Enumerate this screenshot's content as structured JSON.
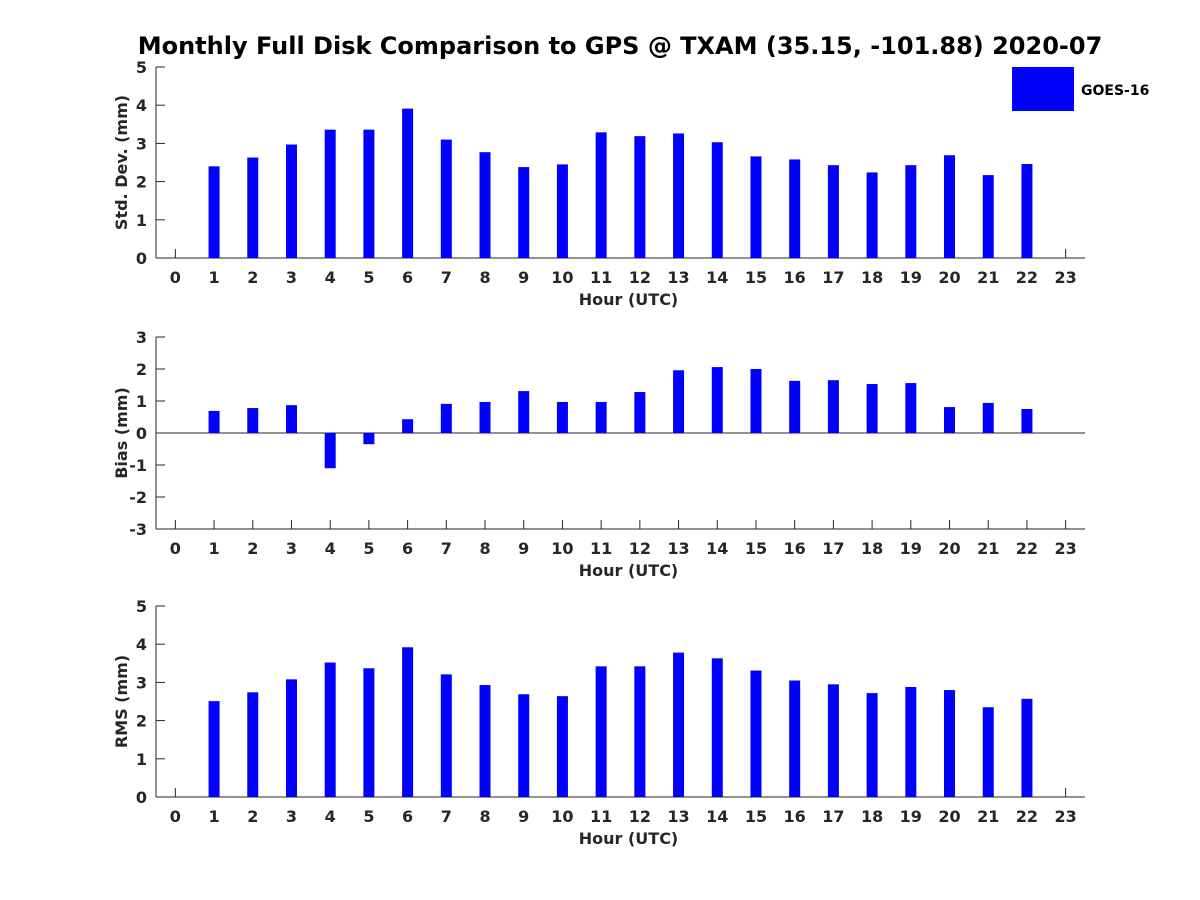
{
  "title": "Monthly Full Disk Comparison to GPS @ TXAM (35.15, -101.88) 2020-07",
  "colors": {
    "bar": "#0000ff",
    "axis": "#262626",
    "background": "#ffffff"
  },
  "legend": {
    "label": "GOES-16",
    "position": "top-right"
  },
  "chart_data": [
    {
      "type": "bar",
      "name": "std-dev",
      "title": "Monthly Full Disk Comparison to GPS @ TXAM (35.15, -101.88) 2020-07",
      "xlabel": "Hour (UTC)",
      "ylabel": "Std. Dev. (mm)",
      "xlim": [
        -0.5,
        23.5
      ],
      "ylim": [
        0,
        5
      ],
      "yticks": [
        0,
        1,
        2,
        3,
        4,
        5
      ],
      "xticks": [
        0,
        1,
        2,
        3,
        4,
        5,
        6,
        7,
        8,
        9,
        10,
        11,
        12,
        13,
        14,
        15,
        16,
        17,
        18,
        19,
        20,
        21,
        22,
        23
      ],
      "zero_line": false,
      "series": [
        {
          "name": "GOES-16",
          "x": [
            1,
            2,
            3,
            4,
            5,
            6,
            7,
            8,
            9,
            10,
            11,
            12,
            13,
            14,
            15,
            16,
            17,
            18,
            19,
            20,
            21,
            22
          ],
          "values": [
            2.4,
            2.63,
            2.97,
            3.36,
            3.36,
            3.91,
            3.1,
            2.77,
            2.38,
            2.45,
            3.29,
            3.19,
            3.26,
            3.03,
            2.66,
            2.58,
            2.43,
            2.24,
            2.43,
            2.69,
            2.17,
            2.46
          ]
        }
      ]
    },
    {
      "type": "bar",
      "name": "bias",
      "xlabel": "Hour (UTC)",
      "ylabel": "Bias (mm)",
      "xlim": [
        -0.5,
        23.5
      ],
      "ylim": [
        -3,
        3
      ],
      "yticks": [
        -3,
        -2,
        -1,
        0,
        1,
        2,
        3
      ],
      "xticks": [
        0,
        1,
        2,
        3,
        4,
        5,
        6,
        7,
        8,
        9,
        10,
        11,
        12,
        13,
        14,
        15,
        16,
        17,
        18,
        19,
        20,
        21,
        22,
        23
      ],
      "zero_line": true,
      "series": [
        {
          "name": "GOES-16",
          "x": [
            1,
            2,
            3,
            4,
            5,
            6,
            7,
            8,
            9,
            10,
            11,
            12,
            13,
            14,
            15,
            16,
            17,
            18,
            19,
            20,
            21,
            22
          ],
          "values": [
            0.69,
            0.78,
            0.87,
            -1.1,
            -0.35,
            0.43,
            0.91,
            0.97,
            1.31,
            0.97,
            0.97,
            1.28,
            1.96,
            2.06,
            2.0,
            1.63,
            1.65,
            1.53,
            1.56,
            0.81,
            0.94,
            0.75
          ]
        }
      ]
    },
    {
      "type": "bar",
      "name": "rms",
      "xlabel": "Hour (UTC)",
      "ylabel": "RMS (mm)",
      "xlim": [
        -0.5,
        23.5
      ],
      "ylim": [
        0,
        5
      ],
      "yticks": [
        0,
        1,
        2,
        3,
        4,
        5
      ],
      "xticks": [
        0,
        1,
        2,
        3,
        4,
        5,
        6,
        7,
        8,
        9,
        10,
        11,
        12,
        13,
        14,
        15,
        16,
        17,
        18,
        19,
        20,
        21,
        22,
        23
      ],
      "zero_line": false,
      "series": [
        {
          "name": "GOES-16",
          "x": [
            1,
            2,
            3,
            4,
            5,
            6,
            7,
            8,
            9,
            10,
            11,
            12,
            13,
            14,
            15,
            16,
            17,
            18,
            19,
            20,
            21,
            22
          ],
          "values": [
            2.51,
            2.74,
            3.08,
            3.52,
            3.37,
            3.92,
            3.21,
            2.93,
            2.69,
            2.64,
            3.42,
            3.42,
            3.78,
            3.63,
            3.31,
            3.05,
            2.95,
            2.72,
            2.88,
            2.8,
            2.35,
            2.57
          ]
        }
      ]
    }
  ]
}
